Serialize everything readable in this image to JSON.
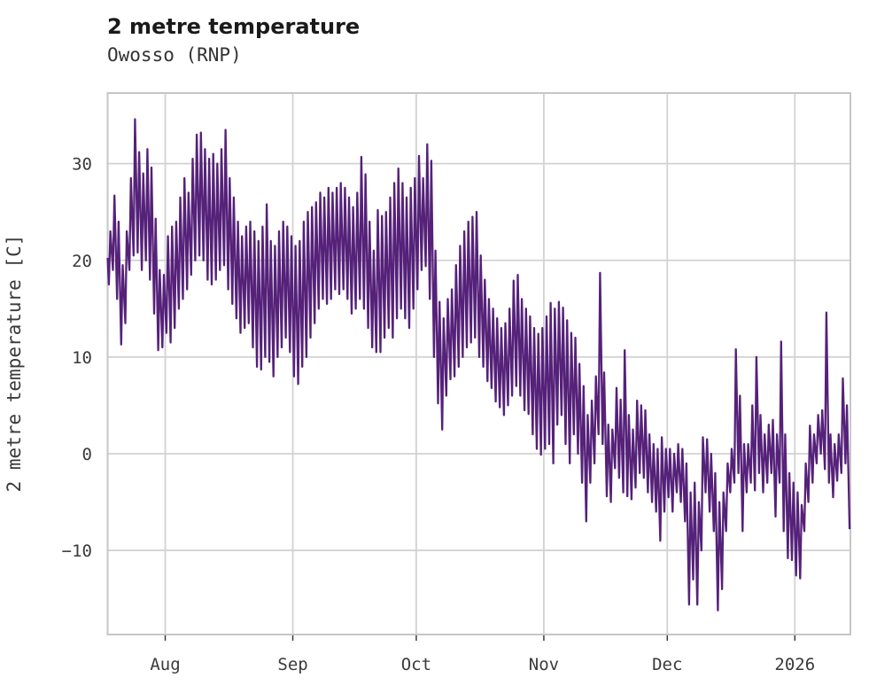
{
  "chart": {
    "title": "2 metre temperature",
    "subtitle": "Owosso (RNP)",
    "ylabel": "2 metre temperature [C]",
    "line_color": "#552179",
    "grid_color": "#d2d2d2",
    "spine_color": "#c6c6c6",
    "tick_color": "#3a3a3a",
    "background_color": "#ffffff"
  },
  "chart_data": {
    "type": "line",
    "title": "2 metre temperature",
    "subtitle": "Owosso (RNP)",
    "xlabel": "",
    "ylabel": "2 metre temperature [C]",
    "units": "C",
    "legend": "none",
    "grid": "on",
    "x_start_date": "2025-07-18",
    "x_end_date": "2026-01-15",
    "ylim": [
      -18.7,
      37.3
    ],
    "yticks": [
      30,
      20,
      10,
      0,
      -10
    ],
    "xticks": [
      {
        "label": "Aug",
        "day": 14
      },
      {
        "label": "Sep",
        "day": 45
      },
      {
        "label": "Oct",
        "day": 75
      },
      {
        "label": "Nov",
        "day": 106
      },
      {
        "label": "Dec",
        "day": 136
      },
      {
        "label": "2026",
        "day": 167
      }
    ],
    "series_name": "2 metre temperature",
    "sampling": "daily min/max pairs read from hourly trace, day 0 = 2025-07-18",
    "daily_min": [
      17.5,
      19,
      16,
      11.3,
      13.5,
      19,
      20.5,
      20.8,
      19,
      20,
      18,
      14.5,
      10.7,
      11,
      12.5,
      11.5,
      13,
      15,
      16,
      17,
      18.5,
      20,
      20.5,
      20,
      18,
      17.5,
      18,
      19,
      19.5,
      17,
      15.5,
      14,
      12.5,
      13,
      13.5,
      11,
      9,
      8.7,
      10,
      9.5,
      8,
      10,
      11,
      12,
      10.5,
      8,
      7.2,
      9,
      10,
      12,
      13.5,
      15,
      16,
      15.5,
      16,
      17,
      16.5,
      17,
      16,
      14.5,
      15,
      16,
      15,
      13,
      11,
      10.5,
      10.5,
      12,
      13,
      12,
      14,
      15,
      14,
      13,
      15,
      17,
      19,
      19.4,
      16,
      10,
      5.2,
      2.5,
      6,
      7.7,
      8,
      9,
      10,
      11,
      11.5,
      12,
      10,
      9,
      7.5,
      6.8,
      5.4,
      4.8,
      4,
      5,
      6,
      7,
      6,
      4.5,
      4.1,
      2,
      0.5,
      -0.1,
      0.5,
      1,
      -1,
      3,
      4,
      1,
      -1,
      2,
      0,
      -3,
      -7,
      -3,
      -1,
      2,
      1,
      -4.4,
      -5,
      -1.5,
      -2.5,
      -4,
      -4.4,
      -4.7,
      -3.5,
      -2,
      -2.5,
      -4,
      -5,
      -6,
      -9,
      -6,
      -4.5,
      -6,
      -4,
      -5,
      -7,
      -15.6,
      -13,
      -15.6,
      -10,
      -4,
      -6,
      -8,
      -16.2,
      -14,
      -8,
      -4,
      -3,
      -2,
      -8,
      -4,
      -3,
      -3.8,
      -2,
      -4,
      -3,
      -2,
      -6.5,
      -3,
      -8,
      -10.8,
      -11,
      -12.6,
      -12.9,
      -8,
      -5,
      -3,
      -1,
      0,
      -1.6,
      -3,
      -4.5,
      -2.8,
      -2,
      -1,
      -7.8
    ],
    "daily_max": [
      23,
      26.7,
      24,
      19.5,
      23,
      28.5,
      34.6,
      31.2,
      29,
      31.5,
      29.6,
      24.3,
      19,
      18.5,
      22.5,
      23.5,
      24,
      26.5,
      28.5,
      27,
      30.5,
      33,
      33.2,
      31.5,
      30.5,
      31,
      30,
      31.5,
      33.5,
      28.5,
      26.5,
      24,
      22.5,
      23.5,
      24,
      23,
      22,
      23.5,
      25.8,
      22,
      21.5,
      23,
      24,
      23.5,
      22.5,
      21.5,
      22,
      24,
      25,
      25.5,
      26,
      27,
      26.5,
      27.5,
      27,
      27.5,
      28,
      27.5,
      26.5,
      25.5,
      27,
      30.7,
      28.9,
      24,
      21,
      25.2,
      24.6,
      25,
      26.5,
      28,
      29.5,
      28,
      26.5,
      27.5,
      28.5,
      30.8,
      28.5,
      32,
      30.3,
      21,
      15.7,
      14,
      16,
      17,
      19.5,
      21.5,
      23,
      24,
      24.5,
      25,
      20.5,
      18,
      16,
      15,
      14,
      13,
      13.5,
      15,
      17.9,
      18.5,
      16,
      15,
      14.2,
      13,
      12.4,
      13,
      14.2,
      15.6,
      15,
      15.7,
      15.1,
      13.8,
      12.5,
      12,
      9.3,
      7,
      4,
      5.5,
      8,
      18.7,
      8.4,
      3,
      2.5,
      6.8,
      5.6,
      10.7,
      4,
      2.5,
      5.5,
      5,
      4.5,
      2,
      1,
      0.5,
      1.7,
      0.5,
      0.5,
      0,
      1,
      0.5,
      -1,
      -4,
      -3,
      -5,
      1.7,
      1.5,
      0,
      -2,
      -5,
      -4,
      -1,
      0.5,
      10.8,
      6,
      1,
      1,
      5,
      10,
      4,
      2,
      3,
      3.5,
      2,
      11.6,
      2,
      -2,
      -3,
      -4,
      -5.3,
      -1,
      2.9,
      2,
      4,
      4.5,
      14.6,
      2,
      1,
      2,
      7.8,
      5,
      2.5
    ]
  }
}
